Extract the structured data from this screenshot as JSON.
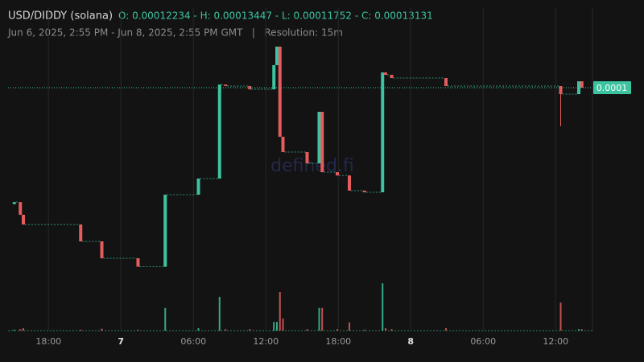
{
  "chart_data": {
    "type": "candlestick",
    "title": "USD/DIDDY (solana)",
    "ohlc_text": "O: 0.00012234 - H: 0.00013447 - L: 0.00011752 - C: 0.00013131",
    "subtitle": "Jun 6, 2025, 2:55 PM - Jun 8, 2025, 2:55 PM GMT   |   Resolution: 15m",
    "watermark": "defined.fi",
    "up_color": "#3cc4a0",
    "down_color": "#e35d5d",
    "x": [
      0.25,
      0.75,
      1,
      5.75,
      7.5,
      10.5,
      12.75,
      15.5,
      17.25,
      17.75,
      19.75,
      21.75,
      22,
      22.25,
      22.5,
      24.5,
      25.5,
      25.75,
      27,
      28,
      29.25,
      30.75,
      31,
      31.5,
      36,
      45.5,
      47,
      47.25
    ],
    "open": [
      0.00012234,
      0.0001225,
      0.00012152,
      0.00012077,
      0.00011947,
      0.00011817,
      0.00011752,
      0.00012307,
      0.00012431,
      0.00013155,
      0.00013143,
      0.00013118,
      0.00013304,
      0.00013447,
      0.00012753,
      0.00012635,
      0.00012548,
      0.00012945,
      0.0001248,
      0.00012455,
      0.00012338,
      0.00012325,
      0.00013248,
      0.0001323,
      0.00013205,
      0.00013143,
      0.00013081,
      0.0001318
    ],
    "high": [
      0.0001225,
      0.0001225,
      0.00012152,
      0.00012077,
      0.00011947,
      0.00011817,
      0.00012307,
      0.00012431,
      0.00013155,
      0.00013155,
      0.00013143,
      0.00013304,
      0.00013447,
      0.00013447,
      0.00012753,
      0.00012635,
      0.00012945,
      0.00012945,
      0.0001248,
      0.00012455,
      0.00012338,
      0.00013248,
      0.00013248,
      0.0001323,
      0.00013205,
      0.00013143,
      0.0001318,
      0.0001318
    ],
    "low": [
      0.00012234,
      0.00012152,
      0.00012077,
      0.00011947,
      0.00011817,
      0.00011752,
      0.00011752,
      0.00012307,
      0.00012431,
      0.00013143,
      0.00013118,
      0.00013118,
      0.00013304,
      0.00012753,
      0.00012635,
      0.00012548,
      0.00012548,
      0.0001248,
      0.00012455,
      0.00012338,
      0.00012325,
      0.00012325,
      0.0001323,
      0.00013205,
      0.00013143,
      0.00012833,
      0.00013081,
      0.00013131
    ],
    "close": [
      0.0001225,
      0.00012152,
      0.00012077,
      0.00011947,
      0.00011817,
      0.00011752,
      0.00012307,
      0.00012431,
      0.00013155,
      0.00013143,
      0.00013118,
      0.00013304,
      0.00013447,
      0.00012753,
      0.00012635,
      0.00012548,
      0.00012945,
      0.0001248,
      0.00012455,
      0.00012338,
      0.00012325,
      0.00013248,
      0.0001323,
      0.00013205,
      0.00013143,
      0.00013081,
      0.0001318,
      0.00013131
    ],
    "volume": [
      2,
      3,
      5,
      2,
      4,
      2,
      47,
      5,
      70,
      3,
      3,
      18,
      18,
      80,
      25,
      3,
      47,
      47,
      3,
      17,
      2,
      98,
      5,
      3,
      5,
      58,
      3,
      3
    ],
    "xlim": [
      0,
      48
    ],
    "ylim": [
      0.00011266,
      0.00013806
    ],
    "vlim": [
      0,
      100
    ],
    "xticks": [
      {
        "value": 3.0833,
        "label": "18:00"
      },
      {
        "value": 9.0833,
        "label": "7"
      },
      {
        "value": 15.0833,
        "label": "06:00"
      },
      {
        "value": 21.0833,
        "label": "12:00"
      },
      {
        "value": 27.0833,
        "label": "18:00"
      },
      {
        "value": 33.0833,
        "label": "8"
      },
      {
        "value": 39.0833,
        "label": "06:00"
      },
      {
        "value": 45.0833,
        "label": "12:00"
      }
    ],
    "last_price": {
      "value": 0.00013131,
      "label": "0.0001"
    },
    "grid": true
  }
}
